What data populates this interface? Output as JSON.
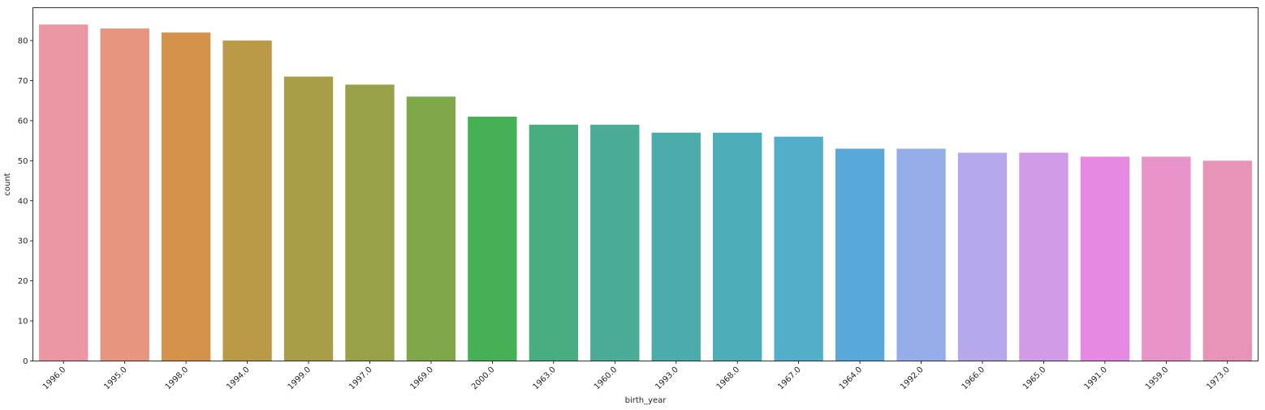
{
  "chart_data": {
    "type": "bar",
    "title": "",
    "xlabel": "birth_year",
    "ylabel": "count",
    "categories": [
      "1996.0",
      "1995.0",
      "1998.0",
      "1994.0",
      "1999.0",
      "1997.0",
      "1969.0",
      "2000.0",
      "1963.0",
      "1960.0",
      "1993.0",
      "1968.0",
      "1967.0",
      "1964.0",
      "1992.0",
      "1966.0",
      "1965.0",
      "1991.0",
      "1959.0",
      "1973.0"
    ],
    "values": [
      84,
      83,
      82,
      80,
      71,
      69,
      66,
      61,
      59,
      59,
      57,
      57,
      56,
      53,
      53,
      52,
      52,
      51,
      51,
      50
    ],
    "colors": [
      "#ea96a3",
      "#e8957f",
      "#d4924b",
      "#bb9a47",
      "#a99e47",
      "#99a148",
      "#7fa84a",
      "#46b055",
      "#49ad82",
      "#4bac97",
      "#4cabab",
      "#4daeb9",
      "#52aec9",
      "#59a8da",
      "#95aee9",
      "#b6a8eb",
      "#d19be8",
      "#e589e3",
      "#e993cb",
      "#e893b8"
    ],
    "yticks": [
      0,
      10,
      20,
      30,
      40,
      50,
      60,
      70,
      80
    ],
    "ylim": [
      0,
      88.2
    ],
    "grid": false,
    "legend": "none"
  }
}
